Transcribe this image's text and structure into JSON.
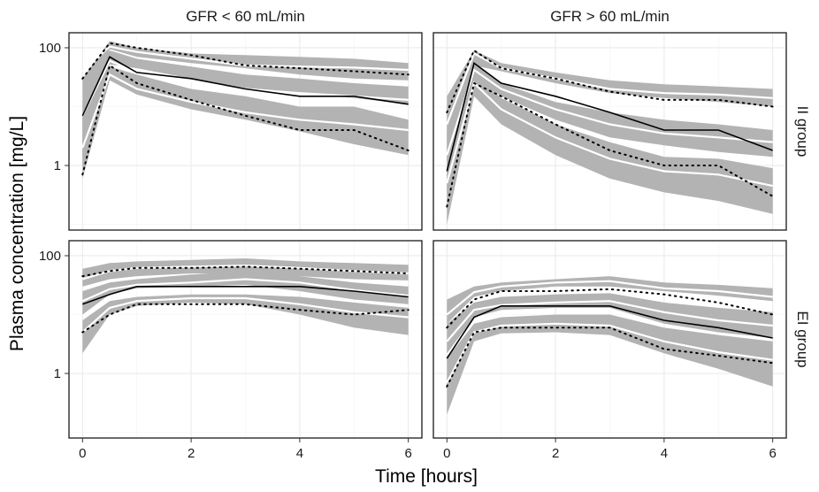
{
  "chart_data": {
    "type": "line",
    "xlabel": "Time [hours]",
    "ylabel": "Plasma concentration [mg/L]",
    "x_ticks": [
      "0",
      "2",
      "4",
      "6"
    ],
    "y_ticks": [
      "1",
      "100"
    ],
    "y_scale": "log",
    "xlim": [
      -0.25,
      6.25
    ],
    "ylim": [
      0.08,
      180
    ],
    "grid": true,
    "columns": [
      "GFR < 60 mL/min",
      "GFR > 60 mL/min"
    ],
    "rows": [
      "II group",
      "EI group"
    ],
    "colors": {
      "band": "#b3b3b3",
      "median_obs": "#000000",
      "median_sim": "#ffffff",
      "grid": "#ebebeb"
    },
    "x": [
      0,
      0.5,
      1,
      2,
      3,
      4,
      5,
      6
    ],
    "panels": [
      {
        "row": "II group",
        "col": "GFR < 60 mL/min",
        "bands": [
          {
            "lower": [
              2.5,
              95,
              70,
              55,
              45,
              35,
              30,
              28
            ],
            "upper": [
              30,
              130,
              100,
              80,
              75,
              70,
              65,
              55
            ]
          },
          {
            "lower": [
              1.0,
              52,
              45,
              30,
              20,
              17,
              14,
              11
            ],
            "upper": [
              11,
              90,
              65,
              48,
              35,
              30,
              25,
              22
            ]
          },
          {
            "lower": [
              0.6,
              28,
              16,
              9,
              6,
              3.8,
              2.3,
              1.5
            ],
            "upper": [
              7,
              48,
              35,
              20,
              15,
              10,
              10,
              6
            ]
          }
        ],
        "sim_lines": [
          [
            40,
            105,
            85,
            65,
            50,
            48,
            46,
            42
          ],
          [
            7,
            60,
            38,
            27,
            20,
            17,
            15,
            13
          ],
          [
            2,
            35,
            20,
            12,
            8,
            6,
            5,
            4
          ]
        ],
        "obs_median": [
          7,
          70,
          38,
          30,
          20,
          15,
          15,
          11
        ],
        "obs_upper": [
          30,
          120,
          100,
          75,
          50,
          45,
          40,
          35
        ],
        "obs_lower": [
          0.7,
          50,
          25,
          13,
          7,
          4,
          4,
          1.8
        ]
      },
      {
        "row": "II group",
        "col": "GFR > 60 mL/min",
        "bands": [
          {
            "lower": [
              2.0,
              50,
              40,
              25,
              17,
              14,
              12,
              10
            ],
            "upper": [
              15,
              90,
              55,
              38,
              28,
              24,
              22,
              20
            ]
          },
          {
            "lower": [
              0.3,
              30,
              15,
              6,
              3,
              2.2,
              1.7,
              1.4
            ],
            "upper": [
              4,
              55,
              25,
              12,
              8,
              6,
              5,
              4
            ]
          },
          {
            "lower": [
              0.1,
              15,
              5,
              1.5,
              0.6,
              0.35,
              0.25,
              0.15
            ],
            "upper": [
              1.5,
              35,
              14,
              5,
              2.5,
              1.4,
              1.3,
              0.9
            ]
          }
        ],
        "sim_lines": [
          [
            5,
            80,
            45,
            30,
            20,
            17,
            16,
            14
          ],
          [
            1.5,
            42,
            20,
            9,
            5,
            3.5,
            3,
            2.5
          ],
          [
            0.5,
            25,
            9,
            3,
            1.3,
            0.8,
            0.7,
            0.45
          ]
        ],
        "obs_median": [
          0.8,
          55,
          25,
          15,
          8,
          4,
          4,
          1.8
        ],
        "obs_upper": [
          8,
          90,
          45,
          30,
          18,
          13,
          13,
          10
        ],
        "obs_lower": [
          0.2,
          25,
          15,
          5,
          1.8,
          1,
          1,
          0.3
        ]
      },
      {
        "row": "EI group",
        "col": "GFR < 60 mL/min",
        "bands": [
          {
            "lower": [
              30,
              40,
              45,
              50,
              50,
              45,
              40,
              38
            ],
            "upper": [
              60,
              75,
              80,
              85,
              90,
              80,
              75,
              70
            ]
          },
          {
            "lower": [
              10,
              22,
              28,
              30,
              32,
              25,
              18,
              15
            ],
            "upper": [
              25,
              35,
              40,
              48,
              55,
              45,
              35,
              30
            ]
          },
          {
            "lower": [
              2.2,
              10,
              14,
              16,
              15,
              10,
              6,
              4.5
            ],
            "upper": [
              8,
              17,
              20,
              22,
              22,
              20,
              16,
              13
            ]
          }
        ],
        "sim_lines": [
          [
            40,
            55,
            62,
            65,
            68,
            62,
            55,
            50
          ],
          [
            17,
            27,
            32,
            35,
            40,
            35,
            26,
            21
          ],
          [
            5,
            13,
            17,
            19,
            19,
            15,
            11,
            9
          ]
        ],
        "obs_median": [
          15,
          22,
          30,
          30,
          30,
          30,
          25,
          20
        ],
        "obs_upper": [
          45,
          55,
          62,
          62,
          65,
          60,
          55,
          50
        ],
        "obs_lower": [
          5,
          10,
          15,
          15,
          15,
          12,
          10,
          12
        ]
      },
      {
        "row": "EI group",
        "col": "GFR > 60 mL/min",
        "bands": [
          {
            "lower": [
              7,
              20,
              25,
              30,
              30,
              25,
              21,
              17
            ],
            "upper": [
              18,
              30,
              35,
              40,
              45,
              35,
              32,
              28
            ]
          },
          {
            "lower": [
              2.2,
              9,
              12,
              13,
              13,
              7,
              5,
              4
            ],
            "upper": [
              7,
              16,
              20,
              22,
              23,
              16,
              13,
              11
            ]
          },
          {
            "lower": [
              0.2,
              3.5,
              4.8,
              5,
              4.5,
              2.2,
              1.2,
              0.6
            ],
            "upper": [
              1.8,
              7,
              9,
              10,
              10,
              6,
              4.5,
              3.5
            ]
          }
        ],
        "sim_lines": [
          [
            10,
            24,
            30,
            35,
            37,
            28,
            25,
            20
          ],
          [
            3.5,
            12,
            14.5,
            16,
            17,
            11,
            8,
            6.5
          ],
          [
            0.7,
            5,
            6.5,
            7,
            6.5,
            3.5,
            2.3,
            1.7
          ]
        ],
        "obs_median": [
          1.8,
          9,
          14,
          14,
          14,
          8,
          6,
          4
        ],
        "obs_upper": [
          6,
          18,
          25,
          25,
          27,
          22,
          16,
          10
        ],
        "obs_lower": [
          0.6,
          5,
          6,
          6,
          6,
          2.6,
          2.0,
          1.5
        ]
      }
    ]
  }
}
